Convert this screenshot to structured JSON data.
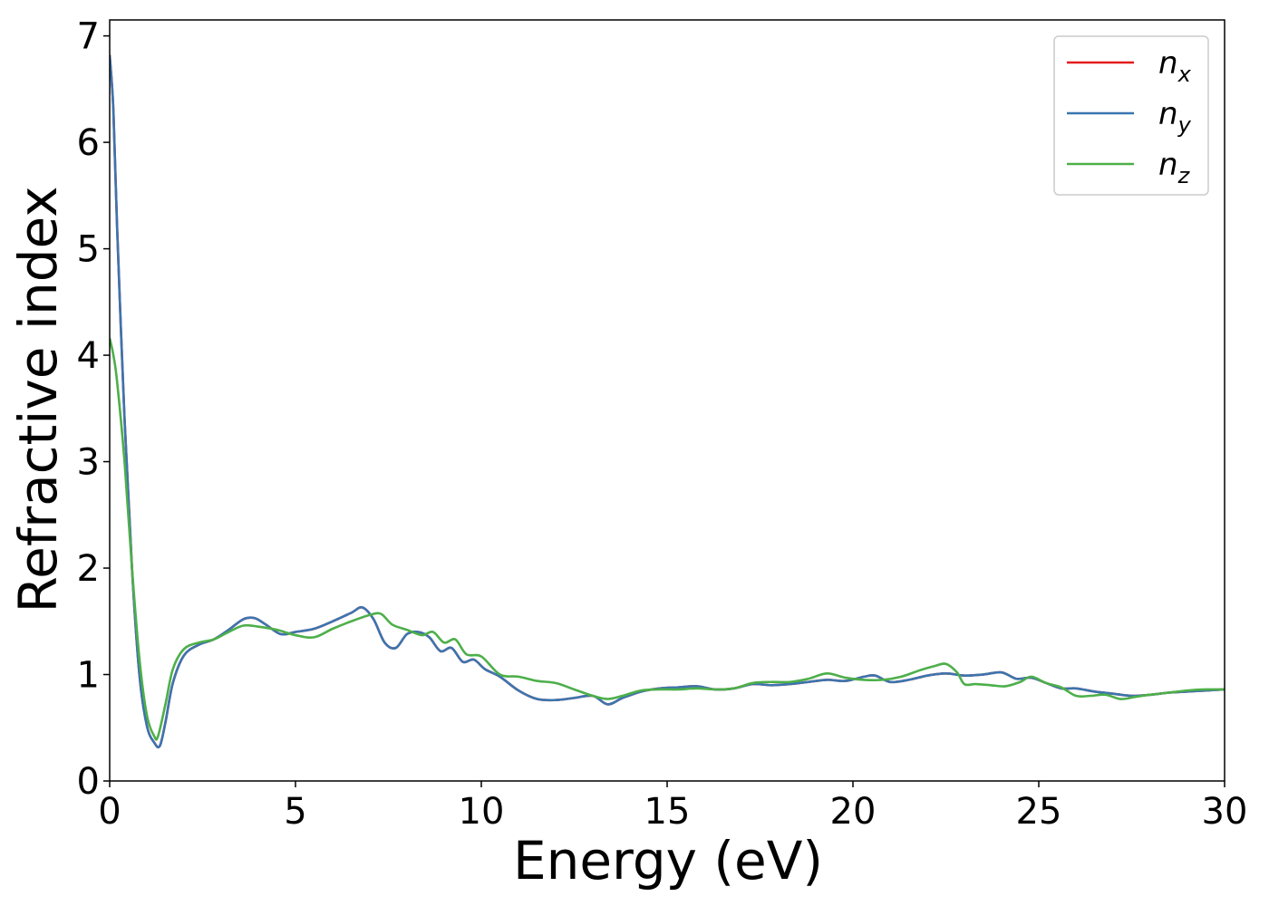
{
  "chart_data": {
    "type": "line",
    "title": "",
    "xlabel": "Energy (eV)",
    "ylabel": "Refractive index",
    "xlim": [
      0,
      30
    ],
    "ylim": [
      0,
      7.15
    ],
    "xticks": [
      0,
      5,
      10,
      15,
      20,
      25,
      30
    ],
    "yticks": [
      0,
      1,
      2,
      3,
      4,
      5,
      6,
      7
    ],
    "grid": false,
    "legend_position": "top-right",
    "series": [
      {
        "name": "n_x",
        "legend_base": "n",
        "legend_sub": "x",
        "color": "#e41a1c",
        "x": [
          0,
          0.1,
          0.2,
          0.4,
          0.6,
          0.8,
          1.0,
          1.2,
          1.35,
          1.5,
          1.7,
          2.0,
          2.4,
          2.8,
          3.2,
          3.6,
          3.9,
          4.2,
          4.6,
          5.0,
          5.5,
          6.0,
          6.5,
          6.8,
          7.1,
          7.4,
          7.7,
          8.0,
          8.3,
          8.6,
          8.9,
          9.2,
          9.5,
          9.8,
          10.1,
          10.5,
          11.0,
          11.5,
          12.0,
          12.5,
          13.0,
          13.4,
          13.8,
          14.3,
          14.8,
          15.3,
          15.8,
          16.3,
          16.8,
          17.3,
          17.8,
          18.3,
          18.8,
          19.3,
          19.8,
          20.3,
          20.6,
          21.0,
          21.5,
          22.0,
          22.5,
          23.0,
          23.5,
          24.0,
          24.4,
          24.8,
          25.2,
          25.6,
          26.0,
          26.5,
          27.0,
          27.5,
          28.0,
          28.5,
          29.0,
          29.5,
          30.0
        ],
        "values": [
          6.82,
          6.3,
          5.2,
          3.4,
          2.0,
          1.0,
          0.52,
          0.36,
          0.33,
          0.55,
          0.92,
          1.18,
          1.28,
          1.33,
          1.42,
          1.52,
          1.53,
          1.47,
          1.38,
          1.4,
          1.43,
          1.5,
          1.58,
          1.63,
          1.52,
          1.3,
          1.25,
          1.38,
          1.4,
          1.35,
          1.22,
          1.25,
          1.12,
          1.14,
          1.05,
          0.98,
          0.85,
          0.77,
          0.76,
          0.78,
          0.8,
          0.72,
          0.78,
          0.84,
          0.87,
          0.88,
          0.89,
          0.86,
          0.87,
          0.91,
          0.9,
          0.91,
          0.93,
          0.95,
          0.94,
          0.98,
          0.99,
          0.93,
          0.95,
          0.99,
          1.01,
          0.99,
          1.0,
          1.02,
          0.96,
          0.97,
          0.92,
          0.87,
          0.87,
          0.84,
          0.82,
          0.8,
          0.81,
          0.83,
          0.84,
          0.85,
          0.86
        ]
      },
      {
        "name": "n_y",
        "legend_base": "n",
        "legend_sub": "y",
        "color": "#3b75af",
        "x": [
          0,
          0.1,
          0.2,
          0.4,
          0.6,
          0.8,
          1.0,
          1.2,
          1.35,
          1.5,
          1.7,
          2.0,
          2.4,
          2.8,
          3.2,
          3.6,
          3.9,
          4.2,
          4.6,
          5.0,
          5.5,
          6.0,
          6.5,
          6.8,
          7.1,
          7.4,
          7.7,
          8.0,
          8.3,
          8.6,
          8.9,
          9.2,
          9.5,
          9.8,
          10.1,
          10.5,
          11.0,
          11.5,
          12.0,
          12.5,
          13.0,
          13.4,
          13.8,
          14.3,
          14.8,
          15.3,
          15.8,
          16.3,
          16.8,
          17.3,
          17.8,
          18.3,
          18.8,
          19.3,
          19.8,
          20.3,
          20.6,
          21.0,
          21.5,
          22.0,
          22.5,
          23.0,
          23.5,
          24.0,
          24.4,
          24.8,
          25.2,
          25.6,
          26.0,
          26.5,
          27.0,
          27.5,
          28.0,
          28.5,
          29.0,
          29.5,
          30.0
        ],
        "values": [
          6.82,
          6.3,
          5.2,
          3.4,
          2.0,
          1.0,
          0.52,
          0.36,
          0.33,
          0.55,
          0.92,
          1.18,
          1.28,
          1.33,
          1.42,
          1.52,
          1.53,
          1.47,
          1.38,
          1.4,
          1.43,
          1.5,
          1.58,
          1.63,
          1.52,
          1.3,
          1.25,
          1.38,
          1.4,
          1.35,
          1.22,
          1.25,
          1.12,
          1.14,
          1.05,
          0.98,
          0.85,
          0.77,
          0.76,
          0.78,
          0.8,
          0.72,
          0.78,
          0.84,
          0.87,
          0.88,
          0.89,
          0.86,
          0.87,
          0.91,
          0.9,
          0.91,
          0.93,
          0.95,
          0.94,
          0.98,
          0.99,
          0.93,
          0.95,
          0.99,
          1.01,
          0.99,
          1.0,
          1.02,
          0.96,
          0.97,
          0.92,
          0.87,
          0.87,
          0.84,
          0.82,
          0.8,
          0.81,
          0.83,
          0.84,
          0.85,
          0.86
        ]
      },
      {
        "name": "n_z",
        "legend_base": "n",
        "legend_sub": "z",
        "color": "#4daf4a",
        "x": [
          0,
          0.1,
          0.2,
          0.4,
          0.6,
          0.8,
          1.0,
          1.2,
          1.3,
          1.5,
          1.7,
          2.0,
          2.4,
          2.8,
          3.2,
          3.6,
          4.0,
          4.5,
          5.0,
          5.5,
          6.0,
          6.5,
          7.0,
          7.3,
          7.6,
          8.0,
          8.4,
          8.7,
          9.0,
          9.3,
          9.6,
          10.0,
          10.5,
          11.0,
          11.5,
          12.0,
          12.5,
          13.0,
          13.4,
          13.8,
          14.3,
          14.8,
          15.3,
          15.8,
          16.3,
          16.8,
          17.3,
          17.8,
          18.3,
          18.8,
          19.3,
          19.8,
          20.3,
          20.8,
          21.3,
          21.8,
          22.2,
          22.5,
          22.8,
          23.0,
          23.3,
          23.7,
          24.1,
          24.5,
          24.8,
          25.2,
          25.6,
          26.0,
          26.4,
          26.8,
          27.2,
          27.6,
          28.0,
          28.5,
          29.0,
          29.5,
          30.0
        ],
        "values": [
          4.16,
          4.0,
          3.75,
          3.0,
          2.0,
          1.15,
          0.62,
          0.42,
          0.42,
          0.72,
          1.05,
          1.24,
          1.3,
          1.33,
          1.4,
          1.46,
          1.45,
          1.42,
          1.37,
          1.35,
          1.43,
          1.5,
          1.56,
          1.57,
          1.47,
          1.42,
          1.37,
          1.4,
          1.3,
          1.33,
          1.19,
          1.17,
          1.0,
          0.98,
          0.94,
          0.92,
          0.86,
          0.8,
          0.77,
          0.8,
          0.85,
          0.86,
          0.86,
          0.87,
          0.86,
          0.87,
          0.92,
          0.93,
          0.93,
          0.96,
          1.01,
          0.97,
          0.95,
          0.95,
          0.98,
          1.04,
          1.08,
          1.1,
          1.02,
          0.91,
          0.91,
          0.9,
          0.89,
          0.93,
          0.98,
          0.92,
          0.88,
          0.8,
          0.8,
          0.81,
          0.77,
          0.79,
          0.81,
          0.83,
          0.85,
          0.86,
          0.86
        ]
      }
    ]
  }
}
